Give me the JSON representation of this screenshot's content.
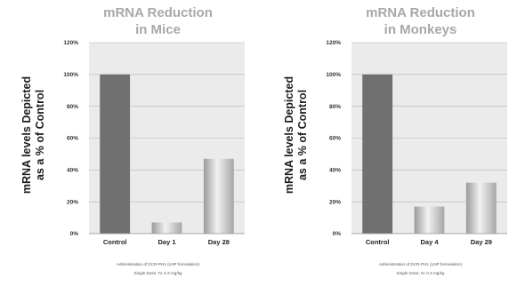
{
  "chart_data": [
    {
      "type": "bar",
      "title_line1": "mRNA Reduction",
      "title_line2": "in Mice",
      "ylabel_line1": "mRNA levels Depicted",
      "ylabel_line2": "as a % of Control",
      "xlabel": "",
      "categories": [
        "Control",
        "Day 1",
        "Day 28"
      ],
      "values": [
        100,
        7,
        47
      ],
      "ylim": [
        0,
        120
      ],
      "yticks": [
        0,
        20,
        40,
        60,
        80,
        100,
        120
      ],
      "ytick_labels": [
        "0%",
        "20%",
        "40%",
        "60%",
        "80%",
        "100%",
        "120%"
      ],
      "grid": true,
      "bar_colors": [
        "#707070",
        "#c4c4c4",
        "#c4c4c4"
      ],
      "footnote_line1": "Administration of DCR-PH1 (LNP formulation)",
      "footnote_line2": "Single Dose; IV, 0.3 mg/kg"
    },
    {
      "type": "bar",
      "title_line1": "mRNA Reduction",
      "title_line2": "in Monkeys",
      "ylabel_line1": "mRNA levels Depicted",
      "ylabel_line2": "as a % of Control",
      "xlabel": "",
      "categories": [
        "Control",
        "Day 4",
        "Day 29"
      ],
      "values": [
        100,
        17,
        32
      ],
      "ylim": [
        0,
        120
      ],
      "yticks": [
        0,
        20,
        40,
        60,
        80,
        100,
        120
      ],
      "ytick_labels": [
        "0%",
        "20%",
        "40%",
        "60%",
        "80%",
        "100%",
        "120%"
      ],
      "grid": true,
      "bar_colors": [
        "#707070",
        "#c4c4c4",
        "#c4c4c4"
      ],
      "footnote_line1": "Administration of DCR-PH1 (LNP formulation)",
      "footnote_line2": "Single Dose; IV, 0.3 mg/kg"
    }
  ]
}
